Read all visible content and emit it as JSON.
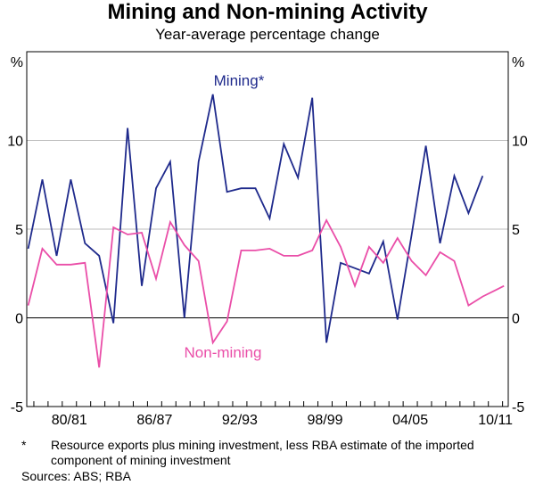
{
  "chart_data": {
    "type": "line",
    "title": "Mining and Non-mining Activity",
    "subtitle": "Year-average percentage change",
    "y_unit": "%",
    "ylim": [
      -5,
      15
    ],
    "yticks": [
      -5,
      0,
      5,
      10
    ],
    "xlim": [
      1977.5,
      2011.4
    ],
    "xtick_labels": [
      "80/81",
      "86/87",
      "92/93",
      "98/99",
      "04/05",
      "10/11"
    ],
    "xtick_years": [
      1981,
      1987,
      1993,
      1999,
      2005,
      2011
    ],
    "series": [
      {
        "name": "Mining*",
        "color": "#1f2a8c",
        "x": [
          1977.6,
          1978.6,
          1979.6,
          1980.6,
          1981.6,
          1982.6,
          1983.6,
          1984.6,
          1985.6,
          1986.6,
          1987.6,
          1988.6,
          1989.6,
          1990.6,
          1991.6,
          1992.6,
          1993.6,
          1994.6,
          1995.6,
          1996.6,
          1997.6,
          1998.6,
          1999.6,
          2000.6,
          2001.6,
          2002.6,
          2003.6,
          2004.6,
          2005.6,
          2006.6,
          2007.6,
          2008.6,
          2009.6
        ],
        "values": [
          3.9,
          7.8,
          3.5,
          7.8,
          4.2,
          3.5,
          -0.3,
          10.7,
          1.8,
          7.3,
          8.8,
          0.0,
          8.8,
          12.6,
          7.1,
          7.3,
          7.3,
          5.6,
          9.8,
          7.9,
          12.4,
          -1.4,
          3.1,
          2.8,
          2.5,
          4.3,
          -0.1,
          4.7,
          9.7,
          4.2,
          8.0,
          5.9,
          8.0
        ]
      },
      {
        "name": "Non-mining",
        "color": "#ea4ea8",
        "x": [
          1977.6,
          1978.6,
          1979.6,
          1980.6,
          1981.6,
          1982.6,
          1983.6,
          1984.6,
          1985.6,
          1986.6,
          1987.6,
          1988.6,
          1989.6,
          1990.6,
          1991.6,
          1992.6,
          1993.6,
          1994.6,
          1995.6,
          1996.6,
          1997.6,
          1998.6,
          1999.6,
          2000.6,
          2001.6,
          2002.6,
          2003.6,
          2004.6,
          2005.6,
          2006.6,
          2007.6,
          2008.6,
          2009.6,
          2010.6,
          2011.1
        ],
        "values": [
          0.7,
          3.9,
          3.0,
          3.0,
          3.1,
          -2.8,
          5.1,
          4.7,
          4.8,
          2.2,
          5.4,
          4.1,
          3.2,
          -1.4,
          -0.2,
          3.8,
          3.8,
          3.9,
          3.5,
          3.5,
          3.8,
          5.5,
          4.0,
          1.8,
          4.0,
          3.1,
          4.5,
          3.2,
          2.4,
          3.7,
          3.2,
          0.7,
          1.2,
          1.6,
          1.8
        ]
      }
    ],
    "annotations": [
      {
        "text": "Mining*",
        "series": "Mining*"
      },
      {
        "text": "Non-mining",
        "series": "Non-mining"
      }
    ],
    "grid": true,
    "legend": "none"
  },
  "footnote": {
    "marker": "*",
    "text": "Resource exports plus mining investment, less RBA estimate of the imported component of mining investment"
  },
  "sources": "Sources: ABS; RBA"
}
